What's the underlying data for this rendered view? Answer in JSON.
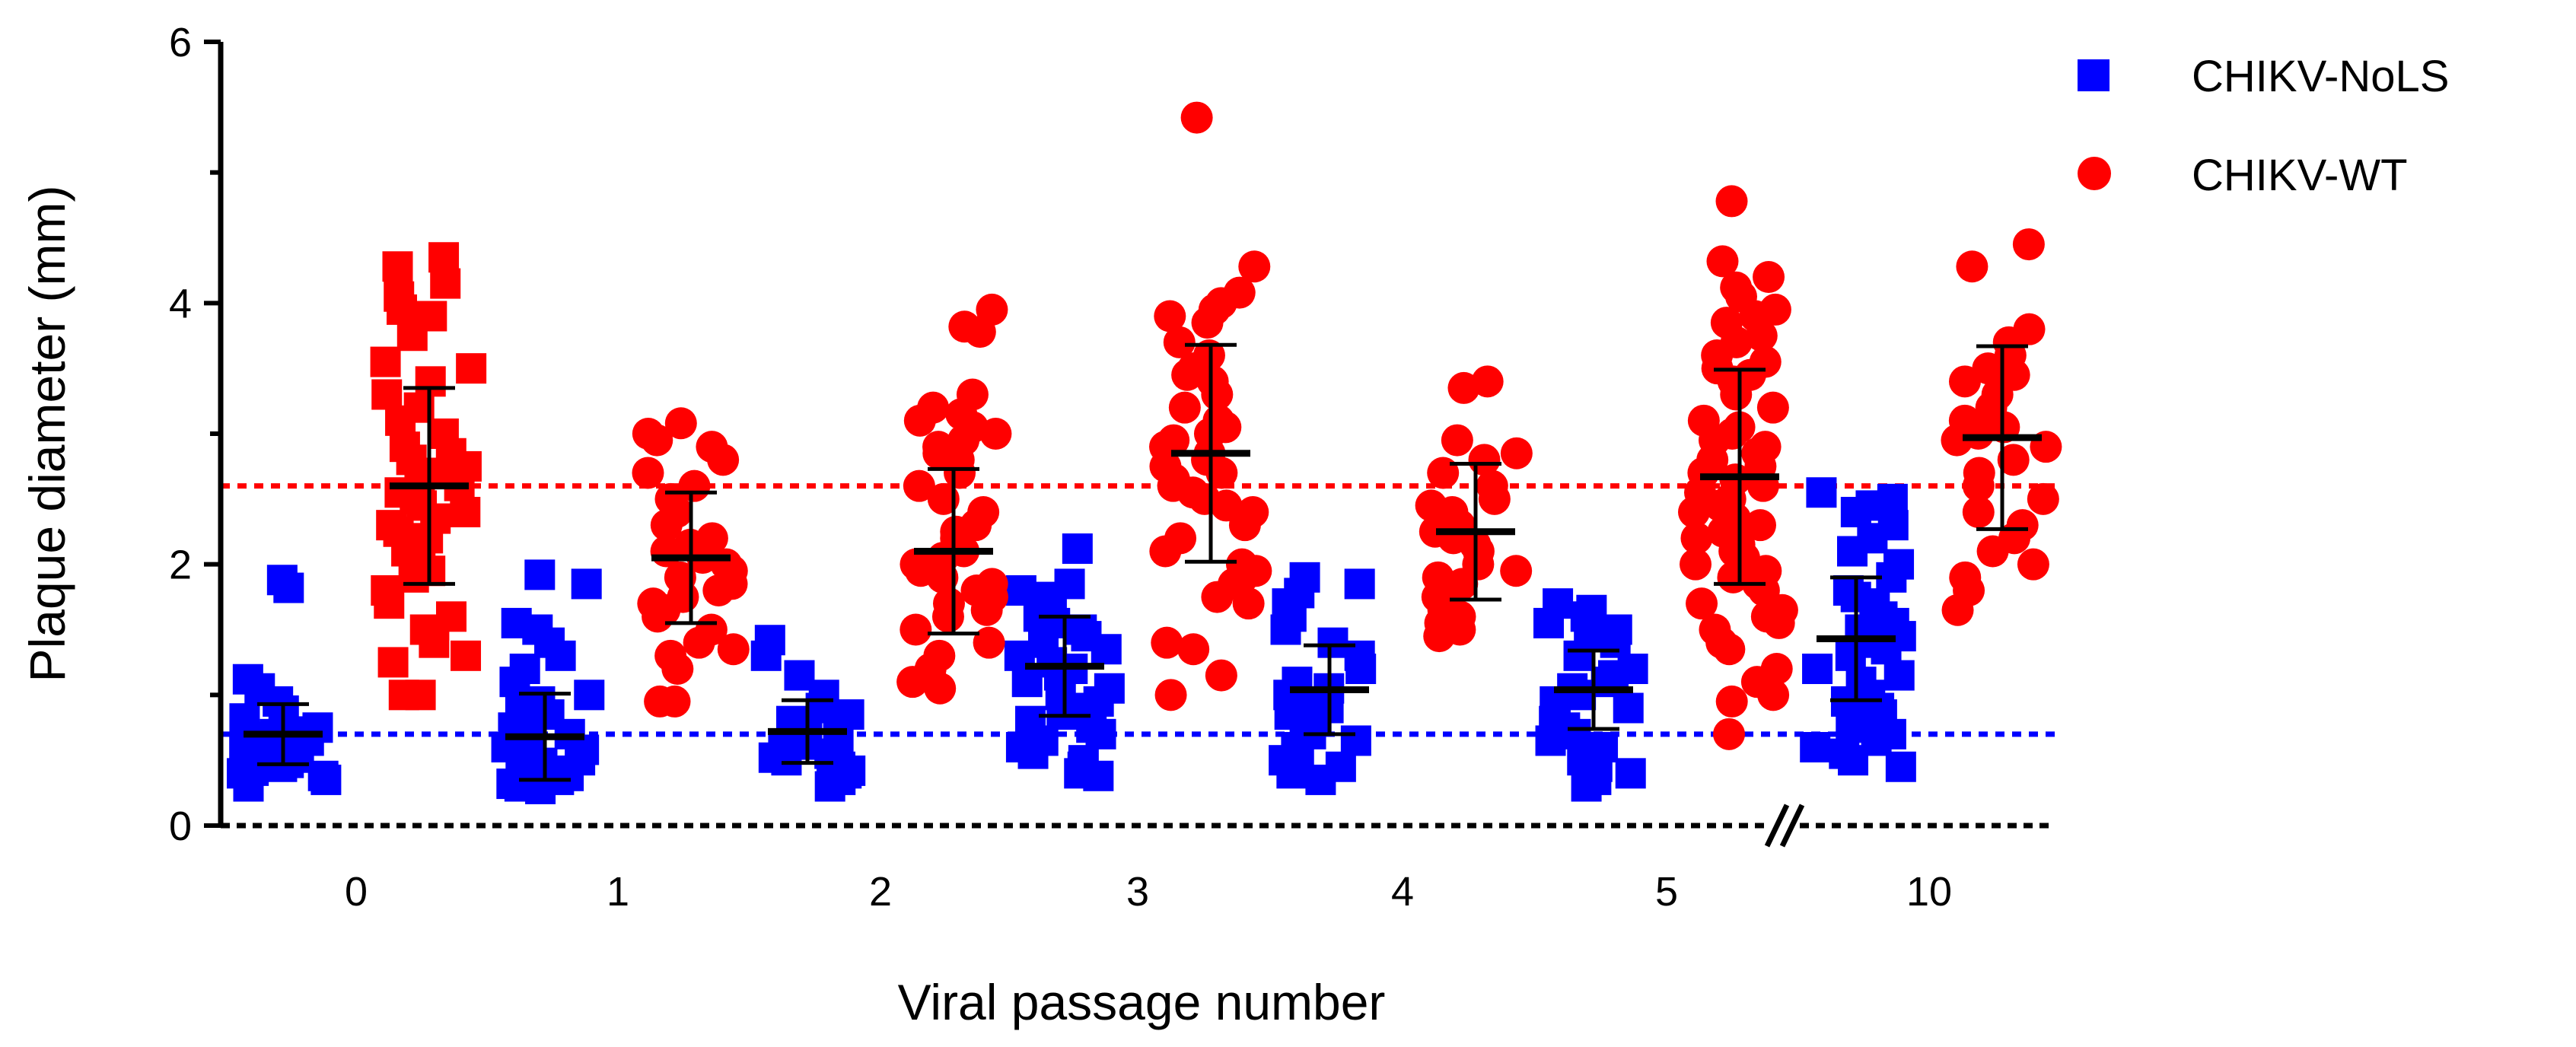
{
  "chart_data": {
    "type": "scatter",
    "subtype": "dot-plot with mean and SD error bars",
    "title": "",
    "xlabel": "Viral passage number",
    "ylabel": "Plaque diameter (mm)",
    "ylim": [
      0,
      6
    ],
    "yticks_labeled": [
      "0",
      "2",
      "4",
      "6"
    ],
    "yticks_all": [
      0,
      1,
      2,
      3,
      4,
      5,
      6
    ],
    "categories": [
      "0",
      "1",
      "2",
      "3",
      "4",
      "5",
      "10"
    ],
    "axis_break": "//",
    "legend_position": "top-right",
    "reference_lines": [
      {
        "series": "CHIKV-WT",
        "y": 2.6,
        "style": "dotted",
        "color": "#ff0000"
      },
      {
        "series": "CHIKV-NoLS",
        "y": 0.7,
        "style": "dotted",
        "color": "#0000ff"
      }
    ],
    "series": [
      {
        "name": "CHIKV-NoLS",
        "marker": "square",
        "color": "#0000ff",
        "means": [
          0.7,
          0.68,
          0.72,
          1.22,
          1.04,
          1.04,
          1.43
        ],
        "sd": [
          0.23,
          0.33,
          0.24,
          0.38,
          0.34,
          0.3,
          0.47
        ],
        "points": [
          [
            1.88,
            1.82,
            1.12,
            1.05,
            0.95,
            0.88,
            0.82,
            0.75,
            0.72,
            0.7,
            0.68,
            0.65,
            0.62,
            0.6,
            0.58,
            0.55,
            0.52,
            0.5,
            0.48,
            0.45,
            0.42,
            0.4,
            0.38,
            0.35,
            0.3
          ],
          [
            1.92,
            1.85,
            1.55,
            1.5,
            1.4,
            1.3,
            1.2,
            1.1,
            1.0,
            0.95,
            0.9,
            0.85,
            0.8,
            0.75,
            0.7,
            0.68,
            0.65,
            0.6,
            0.58,
            0.55,
            0.5,
            0.48,
            0.45,
            0.42,
            0.4,
            0.38,
            0.35,
            0.32,
            0.3,
            0.28
          ],
          [
            1.42,
            1.3,
            1.15,
            1.0,
            0.9,
            0.85,
            0.8,
            0.75,
            0.72,
            0.7,
            0.68,
            0.65,
            0.62,
            0.6,
            0.58,
            0.55,
            0.52,
            0.5,
            0.48,
            0.45,
            0.42,
            0.4,
            0.35,
            0.3
          ],
          [
            2.12,
            1.85,
            1.8,
            1.75,
            1.7,
            1.6,
            1.55,
            1.5,
            1.45,
            1.4,
            1.35,
            1.3,
            1.25,
            1.2,
            1.15,
            1.1,
            1.05,
            1.0,
            0.95,
            0.9,
            0.85,
            0.8,
            0.75,
            0.7,
            0.65,
            0.6,
            0.55,
            0.5,
            0.45,
            0.4,
            0.38
          ],
          [
            1.9,
            1.85,
            1.78,
            1.7,
            1.6,
            1.5,
            1.4,
            1.3,
            1.2,
            1.1,
            1.05,
            1.0,
            0.95,
            0.9,
            0.85,
            0.8,
            0.75,
            0.7,
            0.65,
            0.6,
            0.55,
            0.5,
            0.45,
            0.4,
            0.35
          ],
          [
            1.7,
            1.65,
            1.6,
            1.55,
            1.5,
            1.45,
            1.4,
            1.3,
            1.2,
            1.15,
            1.1,
            1.05,
            1.0,
            0.95,
            0.9,
            0.85,
            0.8,
            0.75,
            0.7,
            0.65,
            0.6,
            0.55,
            0.5,
            0.45,
            0.4,
            0.35,
            0.3
          ],
          [
            2.55,
            2.5,
            2.45,
            2.4,
            2.3,
            2.2,
            2.1,
            2.0,
            1.9,
            1.8,
            1.75,
            1.7,
            1.6,
            1.55,
            1.5,
            1.45,
            1.4,
            1.35,
            1.3,
            1.2,
            1.15,
            1.1,
            1.0,
            0.95,
            0.9,
            0.85,
            0.8,
            0.75,
            0.7,
            0.65,
            0.6,
            0.55,
            0.5,
            0.45
          ]
        ]
      },
      {
        "name": "CHIKV-WT",
        "marker": "square/circle",
        "color": "#ff0000",
        "means": [
          2.6,
          2.05,
          2.1,
          2.85,
          2.25,
          2.67,
          2.97
        ],
        "sd": [
          0.75,
          0.5,
          0.63,
          0.83,
          0.52,
          0.82,
          0.7
        ],
        "points": [
          [
            4.35,
            4.28,
            4.15,
            4.05,
            3.95,
            3.9,
            3.75,
            3.55,
            3.5,
            3.4,
            3.3,
            3.2,
            3.1,
            3.0,
            2.9,
            2.85,
            2.8,
            2.75,
            2.7,
            2.65,
            2.6,
            2.55,
            2.5,
            2.45,
            2.4,
            2.35,
            2.3,
            2.25,
            2.2,
            2.1,
            2.0,
            1.95,
            1.9,
            1.8,
            1.7,
            1.6,
            1.5,
            1.4,
            1.3,
            1.25,
            1.0,
            1.0
          ],
          [
            3.08,
            3.0,
            2.95,
            2.9,
            2.8,
            2.7,
            2.6,
            2.5,
            2.4,
            2.3,
            2.2,
            2.15,
            2.1,
            2.05,
            2.0,
            1.95,
            1.9,
            1.85,
            1.8,
            1.75,
            1.7,
            1.65,
            1.6,
            1.5,
            1.4,
            1.35,
            1.3,
            1.2,
            0.95,
            0.95
          ],
          [
            3.95,
            3.82,
            3.78,
            3.3,
            3.2,
            3.15,
            3.1,
            3.05,
            3.0,
            2.95,
            2.9,
            2.85,
            2.8,
            2.7,
            2.6,
            2.5,
            2.4,
            2.3,
            2.25,
            2.2,
            2.1,
            2.05,
            2.0,
            1.95,
            1.9,
            1.85,
            1.8,
            1.75,
            1.7,
            1.65,
            1.6,
            1.5,
            1.4,
            1.3,
            1.2,
            1.15,
            1.1,
            1.05
          ],
          [
            5.42,
            4.28,
            4.08,
            4.0,
            3.95,
            3.9,
            3.85,
            3.7,
            3.6,
            3.5,
            3.45,
            3.4,
            3.3,
            3.2,
            3.1,
            3.05,
            3.0,
            2.95,
            2.9,
            2.85,
            2.8,
            2.75,
            2.7,
            2.65,
            2.6,
            2.55,
            2.5,
            2.45,
            2.4,
            2.3,
            2.2,
            2.1,
            2.0,
            1.95,
            1.9,
            1.85,
            1.75,
            1.7,
            1.4,
            1.35,
            1.15,
            1.0
          ],
          [
            3.4,
            3.35,
            2.95,
            2.85,
            2.8,
            2.7,
            2.6,
            2.5,
            2.45,
            2.4,
            2.35,
            2.3,
            2.25,
            2.2,
            2.15,
            2.1,
            2.0,
            1.95,
            1.9,
            1.85,
            1.75,
            1.7,
            1.65,
            1.6,
            1.55,
            1.5,
            1.45
          ],
          [
            4.78,
            4.32,
            4.2,
            4.12,
            4.05,
            3.95,
            3.9,
            3.85,
            3.75,
            3.7,
            3.6,
            3.55,
            3.5,
            3.45,
            3.4,
            3.3,
            3.2,
            3.1,
            3.05,
            3.0,
            2.95,
            2.9,
            2.85,
            2.8,
            2.75,
            2.7,
            2.65,
            2.6,
            2.55,
            2.5,
            2.45,
            2.4,
            2.35,
            2.3,
            2.25,
            2.2,
            2.15,
            2.1,
            2.05,
            2.0,
            1.95,
            1.9,
            1.85,
            1.8,
            1.7,
            1.65,
            1.6,
            1.55,
            1.5,
            1.4,
            1.35,
            1.2,
            1.1,
            1.0,
            0.95,
            0.7
          ],
          [
            4.45,
            4.28,
            3.8,
            3.7,
            3.6,
            3.5,
            3.45,
            3.4,
            3.3,
            3.2,
            3.1,
            3.05,
            3.0,
            2.95,
            2.9,
            2.8,
            2.7,
            2.6,
            2.5,
            2.4,
            2.3,
            2.2,
            2.1,
            2.0,
            1.9,
            1.8,
            1.65
          ]
        ]
      }
    ]
  }
}
